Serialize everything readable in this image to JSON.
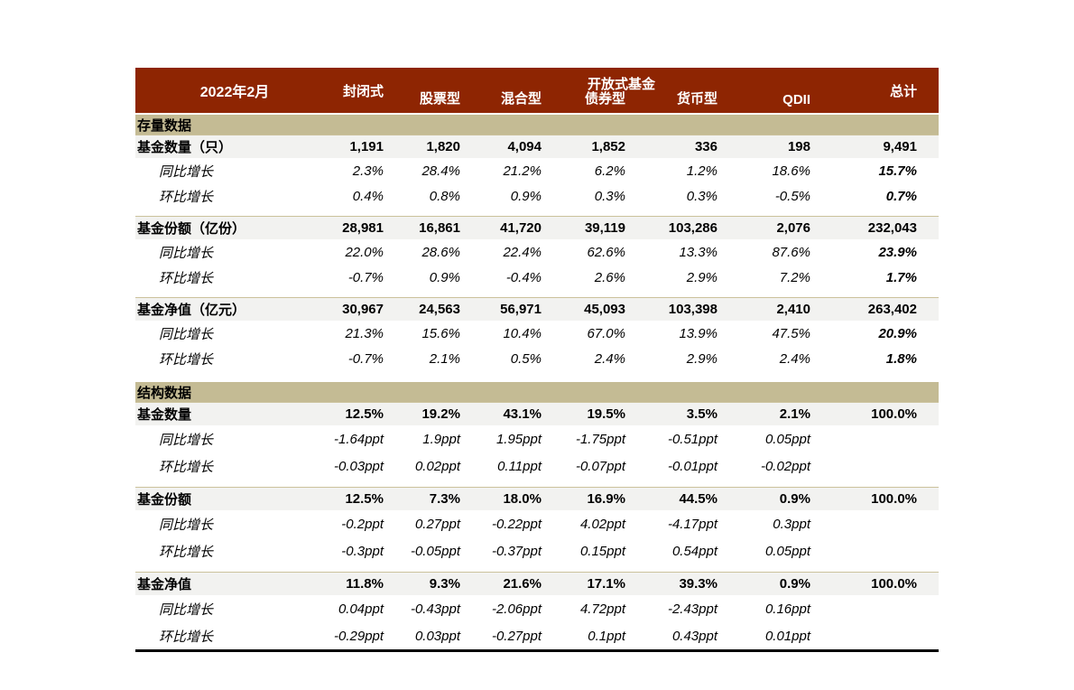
{
  "table": {
    "title_cell": "2022年2月",
    "colors": {
      "header_bg": "#8E2502",
      "header_text": "#FFFFFF",
      "band_bg": "#C4BB94",
      "highlight_row_bg": "#F2F2F0",
      "separator": "#CBC29C",
      "bottom_border": "#000000"
    },
    "header": {
      "group_label": "开放式基金",
      "columns": [
        "封闭式",
        "股票型",
        "混合型",
        "债券型",
        "货币型",
        "QDII",
        "总计"
      ]
    },
    "sections": [
      {
        "band": "存量数据",
        "groups": [
          {
            "label": "基金数量（只）",
            "values": [
              "1,191",
              "1,820",
              "4,094",
              "1,852",
              "336",
              "198",
              "9,491"
            ],
            "rows": [
              {
                "label": "同比增长",
                "values": [
                  "2.3%",
                  "28.4%",
                  "21.2%",
                  "6.2%",
                  "1.2%",
                  "18.6%",
                  "15.7%"
                ]
              },
              {
                "label": "环比增长",
                "values": [
                  "0.4%",
                  "0.8%",
                  "0.9%",
                  "0.3%",
                  "0.3%",
                  "-0.5%",
                  "0.7%"
                ]
              }
            ]
          },
          {
            "label": "基金份额（亿份）",
            "values": [
              "28,981",
              "16,861",
              "41,720",
              "39,119",
              "103,286",
              "2,076",
              "232,043"
            ],
            "rows": [
              {
                "label": "同比增长",
                "values": [
                  "22.0%",
                  "28.6%",
                  "22.4%",
                  "62.6%",
                  "13.3%",
                  "87.6%",
                  "23.9%"
                ]
              },
              {
                "label": "环比增长",
                "values": [
                  "-0.7%",
                  "0.9%",
                  "-0.4%",
                  "2.6%",
                  "2.9%",
                  "7.2%",
                  "1.7%"
                ]
              }
            ]
          },
          {
            "label": "基金净值（亿元）",
            "values": [
              "30,967",
              "24,563",
              "56,971",
              "45,093",
              "103,398",
              "2,410",
              "263,402"
            ],
            "rows": [
              {
                "label": "同比增长",
                "values": [
                  "21.3%",
                  "15.6%",
                  "10.4%",
                  "67.0%",
                  "13.9%",
                  "47.5%",
                  "20.9%"
                ]
              },
              {
                "label": "环比增长",
                "values": [
                  "-0.7%",
                  "2.1%",
                  "0.5%",
                  "2.4%",
                  "2.9%",
                  "2.4%",
                  "1.8%"
                ]
              }
            ]
          }
        ]
      },
      {
        "band": "结构数据",
        "groups": [
          {
            "label": "基金数量",
            "values": [
              "12.5%",
              "19.2%",
              "43.1%",
              "19.5%",
              "3.5%",
              "2.1%",
              "100.0%"
            ],
            "rows": [
              {
                "label": "同比增长",
                "values": [
                  "-1.64ppt",
                  "1.9ppt",
                  "1.95ppt",
                  "-1.75ppt",
                  "-0.51ppt",
                  "0.05ppt",
                  ""
                ]
              },
              {
                "label": "环比增长",
                "values": [
                  "-0.03ppt",
                  "0.02ppt",
                  "0.11ppt",
                  "-0.07ppt",
                  "-0.01ppt",
                  "-0.02ppt",
                  ""
                ]
              }
            ]
          },
          {
            "label": "基金份额",
            "values": [
              "12.5%",
              "7.3%",
              "18.0%",
              "16.9%",
              "44.5%",
              "0.9%",
              "100.0%"
            ],
            "rows": [
              {
                "label": "同比增长",
                "values": [
                  "-0.2ppt",
                  "0.27ppt",
                  "-0.22ppt",
                  "4.02ppt",
                  "-4.17ppt",
                  "0.3ppt",
                  ""
                ]
              },
              {
                "label": "环比增长",
                "values": [
                  "-0.3ppt",
                  "-0.05ppt",
                  "-0.37ppt",
                  "0.15ppt",
                  "0.54ppt",
                  "0.05ppt",
                  ""
                ]
              }
            ]
          },
          {
            "label": "基金净值",
            "values": [
              "11.8%",
              "9.3%",
              "21.6%",
              "17.1%",
              "39.3%",
              "0.9%",
              "100.0%"
            ],
            "rows": [
              {
                "label": "同比增长",
                "values": [
                  "0.04ppt",
                  "-0.43ppt",
                  "-2.06ppt",
                  "4.72ppt",
                  "-2.43ppt",
                  "0.16ppt",
                  ""
                ]
              },
              {
                "label": "环比增长",
                "values": [
                  "-0.29ppt",
                  "0.03ppt",
                  "-0.27ppt",
                  "0.1ppt",
                  "0.43ppt",
                  "0.01ppt",
                  ""
                ]
              }
            ]
          }
        ]
      }
    ]
  }
}
